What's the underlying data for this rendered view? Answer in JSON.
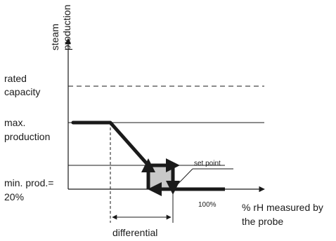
{
  "chart_data": {
    "type": "line",
    "title": "",
    "y_axis_label": [
      "steam",
      "production"
    ],
    "x_axis_label": [
      "% rH measured by",
      "the probe"
    ],
    "levels": {
      "rated_capacity": [
        "rated",
        "capacity"
      ],
      "max_production": [
        "max.",
        "production"
      ],
      "min_production": [
        "min. prod.=",
        "20%"
      ]
    },
    "annotations": {
      "set_point": "set point",
      "full_scale": "100%",
      "differential": "differential"
    },
    "curve": {
      "description_points": [
        {
          "x": 0,
          "y": "max"
        },
        {
          "x": "set_point - differential",
          "y": "max"
        },
        {
          "x": "set_point",
          "y": "min"
        },
        {
          "x": "100%",
          "y": 0
        }
      ]
    },
    "colors": {
      "axis": "#1a1a1a",
      "curve": "#1a1a1a",
      "hysteresis_fill": "#c8c8c8"
    }
  }
}
